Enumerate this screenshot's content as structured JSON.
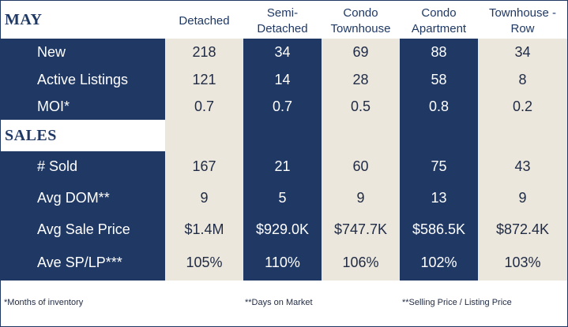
{
  "header": {
    "section_title": "MAY",
    "columns": [
      [
        "Detached"
      ],
      [
        "Semi-",
        "Detached"
      ],
      [
        "Condo",
        "Townhouse"
      ],
      [
        "Condo",
        "Apartment"
      ],
      [
        "Townhouse -",
        "Row"
      ]
    ]
  },
  "listings": {
    "rows": [
      {
        "label": "New",
        "values": [
          "218",
          "34",
          "69",
          "88",
          "34"
        ]
      },
      {
        "label": "Active Listings",
        "values": [
          "121",
          "14",
          "28",
          "58",
          "8"
        ]
      },
      {
        "label": "MOI*",
        "values": [
          "0.7",
          "0.7",
          "0.5",
          "0.8",
          "0.2"
        ]
      }
    ]
  },
  "sales": {
    "section_title": "SALES",
    "rows": [
      {
        "label": "# Sold",
        "values": [
          "167",
          "21",
          "60",
          "75",
          "43"
        ]
      },
      {
        "label": "Avg DOM**",
        "values": [
          "9",
          "5",
          "9",
          "13",
          "9"
        ]
      },
      {
        "label": "Avg Sale Price",
        "values": [
          "$1.4M",
          "$929.0K",
          "$747.7K",
          "$586.5K",
          "$872.4K"
        ]
      },
      {
        "label": "Ave SP/LP***",
        "values": [
          "105%",
          "110%",
          "106%",
          "102%",
          "103%"
        ]
      }
    ]
  },
  "footnotes": {
    "moi": "*Months of inventory",
    "dom": "**Days on Market",
    "splp": "**Selling Price / Listing Price"
  },
  "colors": {
    "navy": "#1f3864",
    "beige": "#ebe7dd",
    "white": "#ffffff"
  }
}
